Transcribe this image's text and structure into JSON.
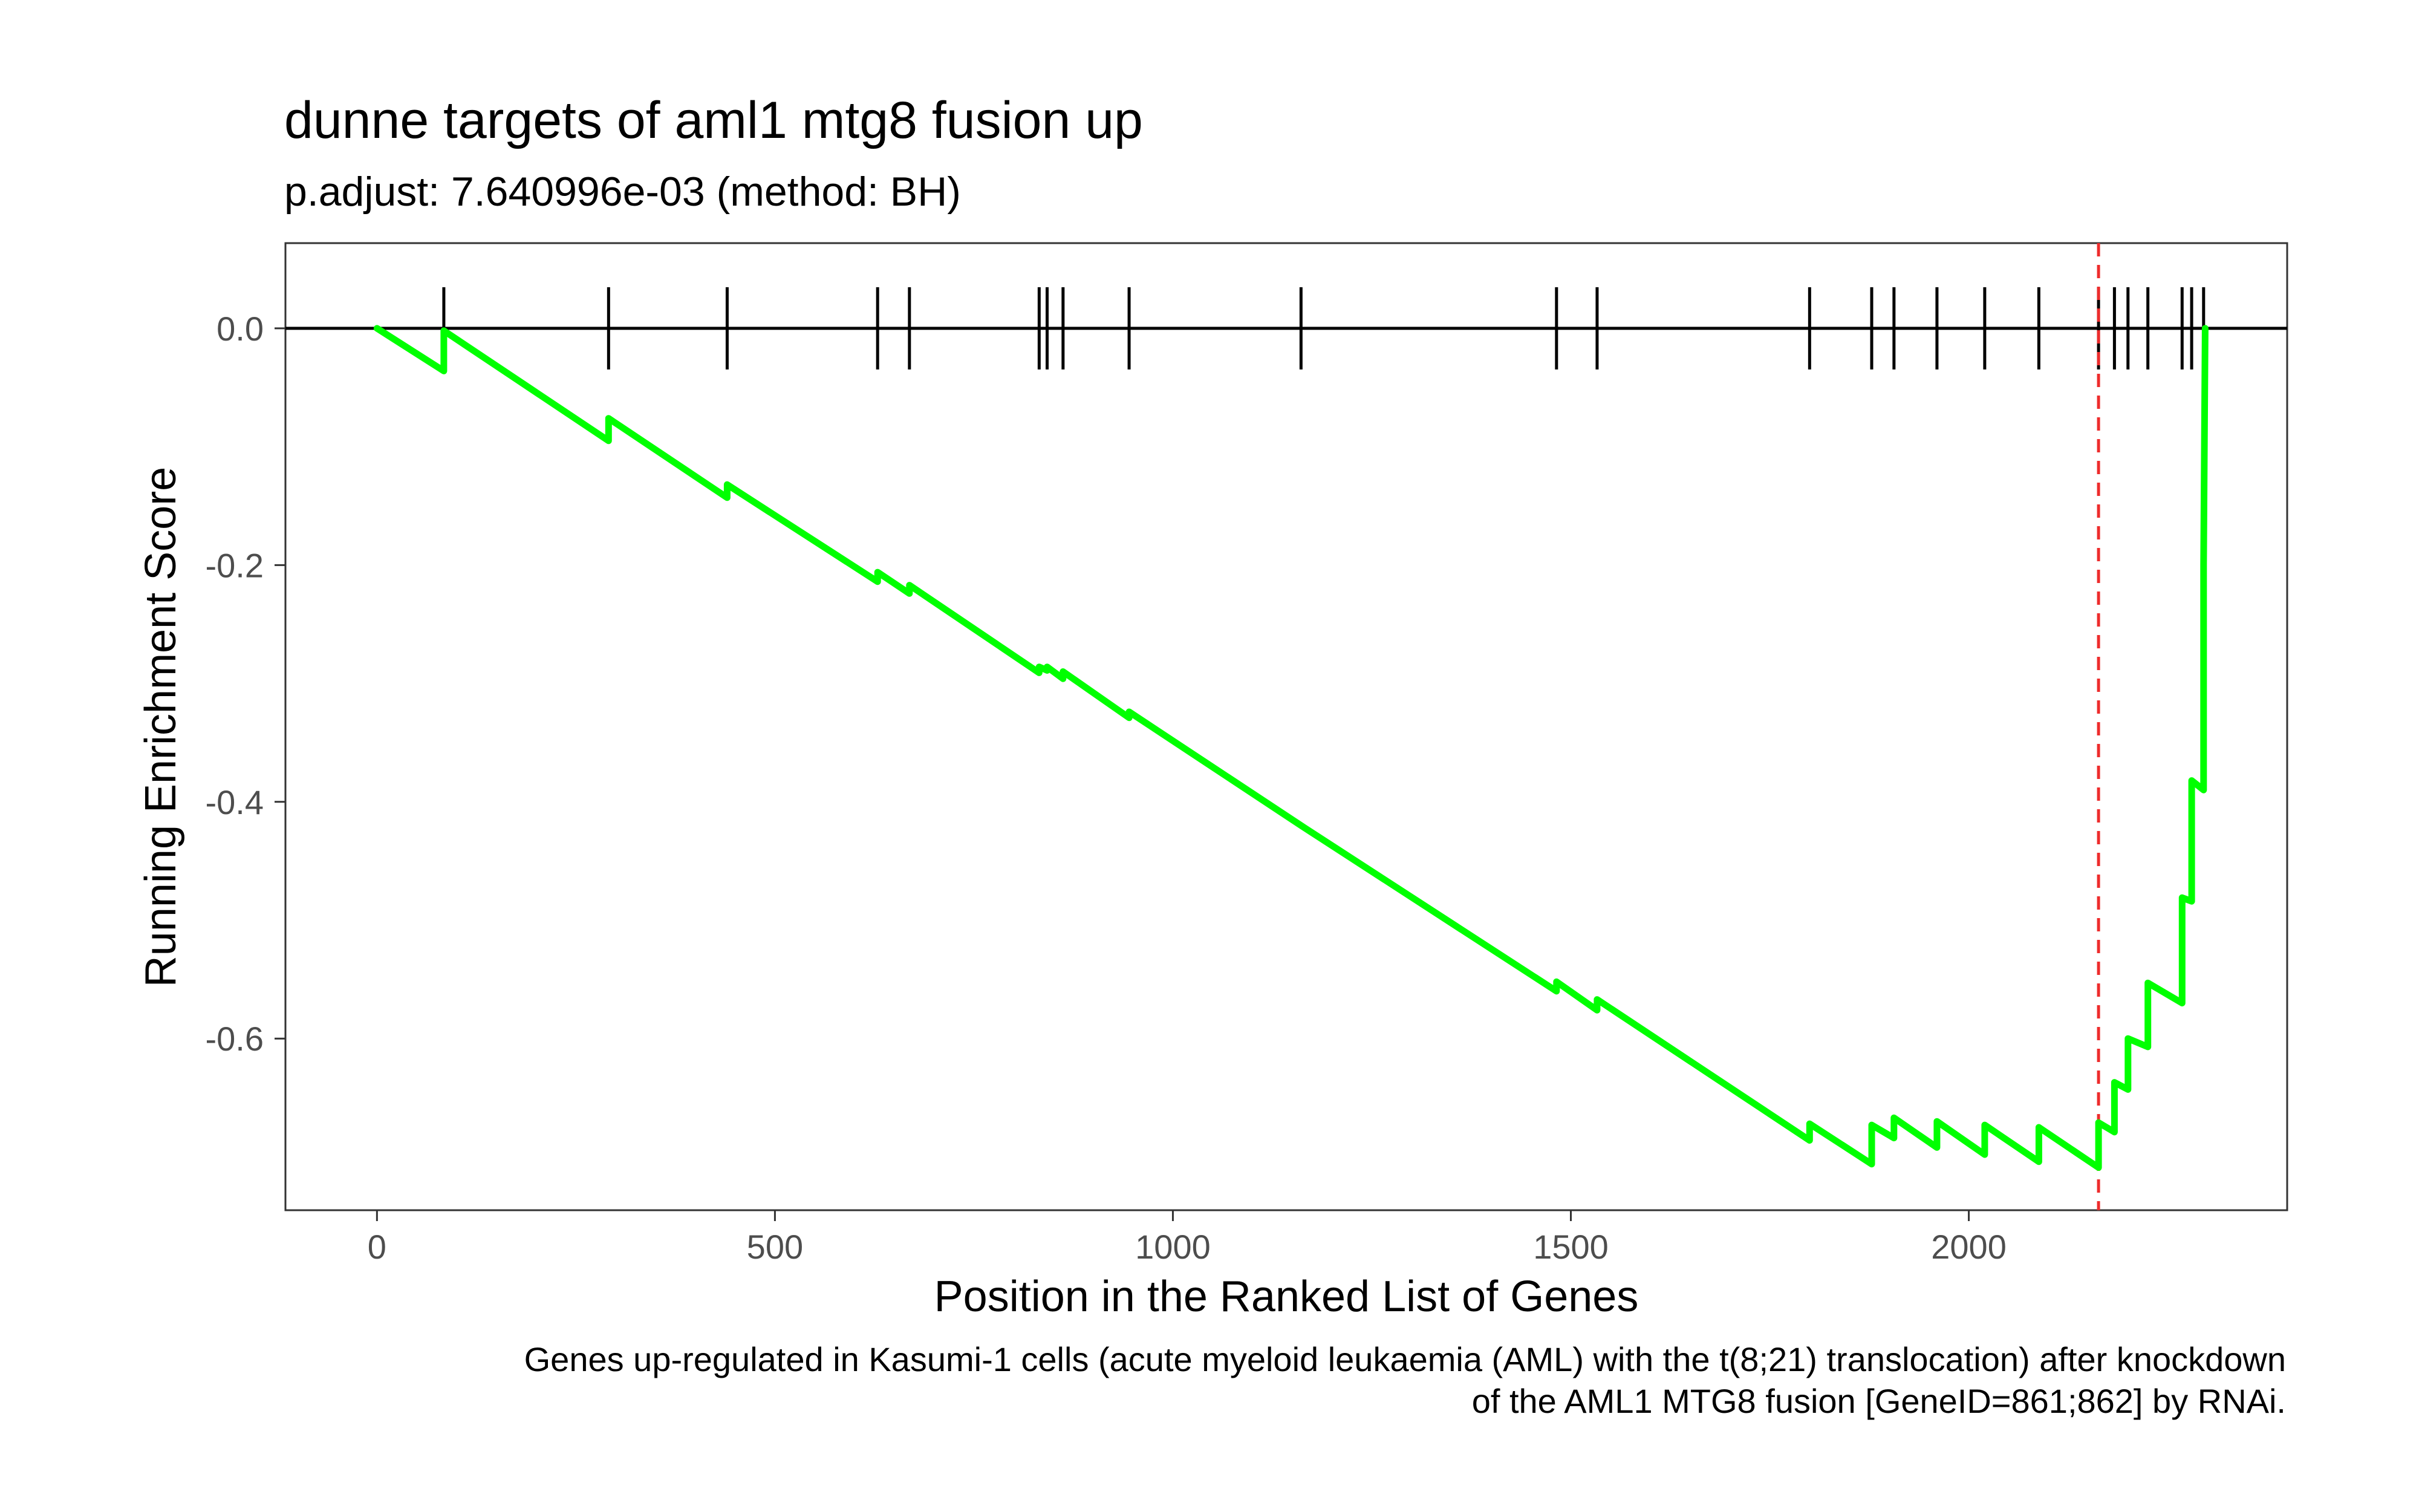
{
  "chart_data": {
    "type": "line",
    "title": "dunne targets of aml1 mtg8 fusion up",
    "subtitle": "p.adjust: 7.640996e-03 (method: BH)",
    "xlabel": "Position in the Ranked List of Genes",
    "ylabel": "Running Enrichment Score",
    "caption": [
      "Genes up-regulated in Kasumi-1 cells (acute myeloid leukaemia (AML) with the t(8;21) translocation) after knockdown",
      "of the AML1 MTG8 fusion [GeneID=861;862] by RNAi."
    ],
    "xlim": [
      -115,
      2400
    ],
    "ylim": [
      -0.745,
      0.072
    ],
    "x_ticks": [
      0,
      500,
      1000,
      1500,
      2000
    ],
    "x_tick_labels": [
      "0",
      "500",
      "1000",
      "1500",
      "2000"
    ],
    "y_ticks": [
      0.0,
      -0.2,
      -0.4,
      -0.6
    ],
    "y_tick_labels": [
      "0.0",
      "-0.2",
      "-0.4",
      "-0.6"
    ],
    "grid": false,
    "reference_line_y": 0.0,
    "max_deviation_position": 2163,
    "hit_positions": [
      84,
      291,
      440,
      629,
      669,
      832,
      842,
      862,
      945,
      1161,
      1482,
      1533,
      1800,
      1878,
      1906,
      1960,
      2020,
      2088,
      2163,
      2183,
      2200,
      2225,
      2268,
      2280,
      2295
    ],
    "series": [
      {
        "values": [
          {
            "x": 0,
            "y": 0.0
          },
          {
            "x": 84,
            "y": -0.036
          },
          {
            "x": 84,
            "y": -0.002
          },
          {
            "x": 291,
            "y": -0.095
          },
          {
            "x": 291,
            "y": -0.076
          },
          {
            "x": 440,
            "y": -0.143
          },
          {
            "x": 440,
            "y": -0.132
          },
          {
            "x": 629,
            "y": -0.214
          },
          {
            "x": 629,
            "y": -0.206
          },
          {
            "x": 669,
            "y": -0.224
          },
          {
            "x": 669,
            "y": -0.217
          },
          {
            "x": 832,
            "y": -0.291
          },
          {
            "x": 832,
            "y": -0.286
          },
          {
            "x": 842,
            "y": -0.289
          },
          {
            "x": 842,
            "y": -0.286
          },
          {
            "x": 862,
            "y": -0.296
          },
          {
            "x": 862,
            "y": -0.29
          },
          {
            "x": 945,
            "y": -0.329
          },
          {
            "x": 945,
            "y": -0.324
          },
          {
            "x": 1161,
            "y": -0.42
          },
          {
            "x": 1482,
            "y": -0.56
          },
          {
            "x": 1482,
            "y": -0.552
          },
          {
            "x": 1533,
            "y": -0.576
          },
          {
            "x": 1533,
            "y": -0.567
          },
          {
            "x": 1800,
            "y": -0.686
          },
          {
            "x": 1800,
            "y": -0.672
          },
          {
            "x": 1878,
            "y": -0.706
          },
          {
            "x": 1878,
            "y": -0.673
          },
          {
            "x": 1906,
            "y": -0.684
          },
          {
            "x": 1906,
            "y": -0.667
          },
          {
            "x": 1960,
            "y": -0.692
          },
          {
            "x": 1960,
            "y": -0.67
          },
          {
            "x": 2020,
            "y": -0.698
          },
          {
            "x": 2020,
            "y": -0.673
          },
          {
            "x": 2088,
            "y": -0.704
          },
          {
            "x": 2088,
            "y": -0.675
          },
          {
            "x": 2163,
            "y": -0.709
          },
          {
            "x": 2163,
            "y": -0.671
          },
          {
            "x": 2183,
            "y": -0.679
          },
          {
            "x": 2183,
            "y": -0.637
          },
          {
            "x": 2200,
            "y": -0.643
          },
          {
            "x": 2200,
            "y": -0.6
          },
          {
            "x": 2225,
            "y": -0.607
          },
          {
            "x": 2225,
            "y": -0.553
          },
          {
            "x": 2268,
            "y": -0.57
          },
          {
            "x": 2268,
            "y": -0.481
          },
          {
            "x": 2280,
            "y": -0.484
          },
          {
            "x": 2280,
            "y": -0.382
          },
          {
            "x": 2295,
            "y": -0.39
          },
          {
            "x": 2295,
            "y": -0.2
          },
          {
            "x": 2297,
            "y": 0.0
          }
        ]
      }
    ],
    "colors": {
      "running_score": "#00ff00",
      "max_deviation_line": "#ee2c2c",
      "hits": "#000000",
      "reference_line": "#000000",
      "panel_border": "#333333",
      "tick_label": "#4d4d4d"
    }
  }
}
